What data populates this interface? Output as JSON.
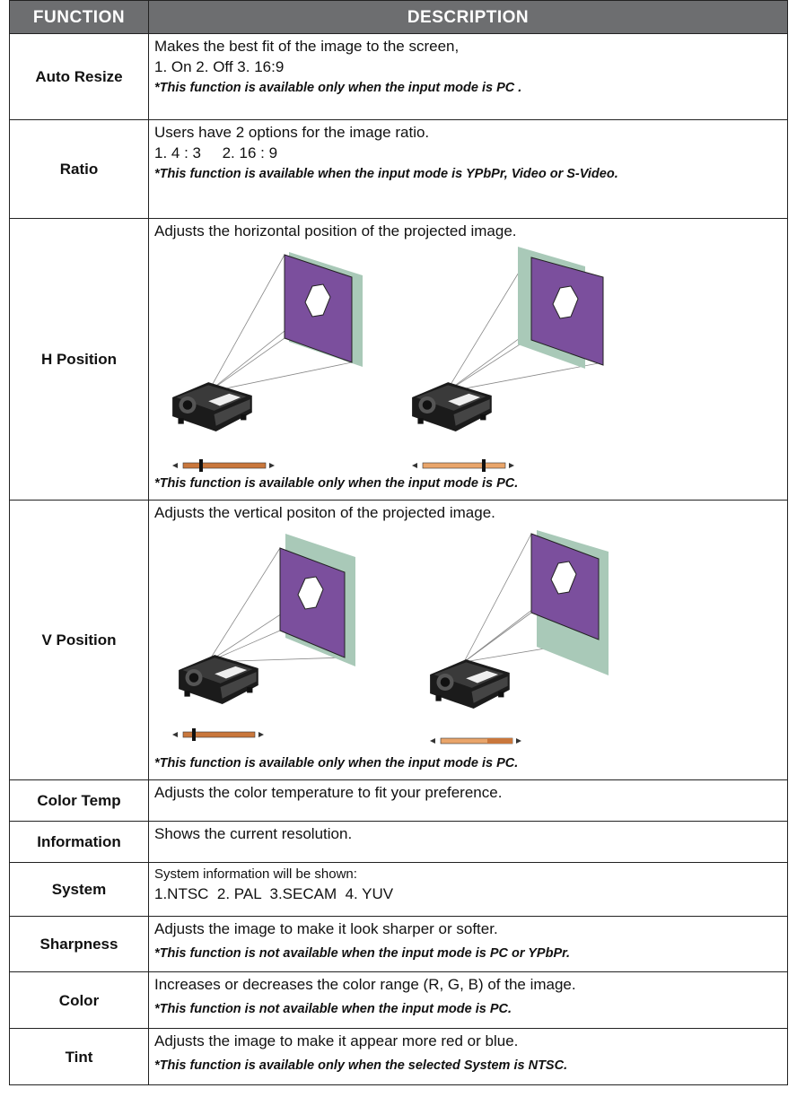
{
  "table": {
    "header": [
      "FUNCTION",
      "DESCRIPTION"
    ],
    "rows": [
      {
        "function": "Auto Resize",
        "lines": [
          "Makes the best fit of the image to the screen,",
          "1. On 2. Off 3. 16:9"
        ],
        "note": "*This function is available only when the input mode is PC ."
      },
      {
        "function": "Ratio",
        "lines": [
          "Users have 2 options for the image ratio.",
          "1. 4 : 3     2. 16 : 9"
        ],
        "note": "*This function is available when the input mode is YPbPr, Video or S-Video."
      },
      {
        "function": "H Position",
        "lines": [
          "Adjusts the horizontal position of the projected image."
        ],
        "note": "*This function is available only when the input mode is PC."
      },
      {
        "function": "V Position",
        "lines": [
          "Adjusts the vertical positon of the projected image."
        ],
        "note": "*This function is available only when the input mode is PC."
      },
      {
        "function": "Color Temp",
        "lines": [
          "Adjusts the color temperature to fit your preference."
        ]
      },
      {
        "function": "Information",
        "lines": [
          "Shows the current resolution."
        ]
      },
      {
        "function": "System",
        "lines": [
          "System information will be shown:",
          "1.NTSC  2. PAL  3.SECAM  4. YUV"
        ]
      },
      {
        "function": "Sharpness",
        "lines": [
          "Adjusts the image to make it look sharper or softer."
        ],
        "note": "*This function is not available when the input mode is PC or YPbPr."
      },
      {
        "function": "Color",
        "lines": [
          "Increases or decreases the color range (R, G, B) of the image."
        ],
        "note": "*This function is not available when the input mode is PC."
      },
      {
        "function": "Tint",
        "lines": [
          "Adjusts the image to make it appear more red or blue."
        ],
        "note": "*This function is available only when the selected System is NTSC."
      }
    ]
  }
}
